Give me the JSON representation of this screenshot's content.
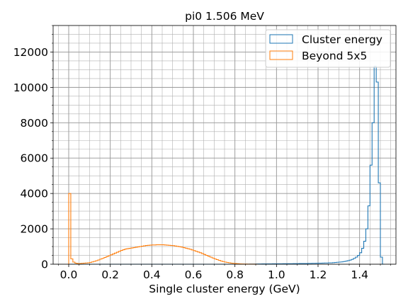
{
  "chart_data": {
    "type": "histogram",
    "title": "pi0 1.506 MeV",
    "xlabel": "Single cluster energy (GeV)",
    "ylabel": "",
    "xlim": [
      -0.075,
      1.575
    ],
    "ylim": [
      0,
      13500
    ],
    "x_ticks": [
      "0.0",
      "0.2",
      "0.4",
      "0.6",
      "0.8",
      "1.0",
      "1.2",
      "1.4"
    ],
    "y_ticks": [
      "0",
      "2000",
      "4000",
      "6000",
      "8000",
      "10000",
      "12000"
    ],
    "x_tick_values": [
      0.0,
      0.2,
      0.4,
      0.6,
      0.8,
      1.0,
      1.2,
      1.4
    ],
    "y_tick_values": [
      0,
      2000,
      4000,
      6000,
      8000,
      10000,
      12000
    ],
    "grid": true,
    "minor_grid": true,
    "legend_position": "top-right",
    "bin_start": 0.0,
    "bin_width": 0.01,
    "series": [
      {
        "name": "Cluster energy",
        "color": "#1f77b4",
        "values": [
          0,
          0,
          0,
          0,
          0,
          0,
          0,
          0,
          0,
          0,
          0,
          0,
          0,
          0,
          0,
          0,
          0,
          0,
          0,
          0,
          0,
          0,
          0,
          0,
          0,
          0,
          0,
          0,
          0,
          0,
          0,
          0,
          0,
          0,
          0,
          0,
          0,
          0,
          0,
          0,
          0,
          0,
          0,
          0,
          0,
          0,
          0,
          0,
          0,
          0,
          0,
          0,
          0,
          0,
          0,
          0,
          0,
          0,
          0,
          0,
          0,
          0,
          0,
          0,
          0,
          0,
          0,
          0,
          0,
          0,
          0,
          0,
          0,
          0,
          0,
          0,
          0,
          0,
          0,
          0,
          0,
          0,
          0,
          0,
          5,
          5,
          5,
          10,
          10,
          10,
          15,
          15,
          15,
          20,
          20,
          20,
          20,
          20,
          25,
          25,
          25,
          25,
          25,
          30,
          30,
          30,
          30,
          30,
          35,
          35,
          35,
          40,
          40,
          40,
          40,
          45,
          45,
          50,
          50,
          55,
          60,
          60,
          65,
          70,
          70,
          80,
          80,
          90,
          100,
          110,
          120,
          130,
          150,
          170,
          200,
          230,
          270,
          330,
          400,
          500,
          650,
          900,
          1300,
          2000,
          3300,
          5600,
          8000,
          11200,
          10300,
          4600,
          400,
          0
        ]
      },
      {
        "name": "Beyond 5x5",
        "color": "#ff7f0e",
        "values": [
          4000,
          300,
          120,
          60,
          40,
          40,
          50,
          60,
          70,
          80,
          100,
          130,
          160,
          200,
          240,
          290,
          330,
          380,
          430,
          480,
          530,
          580,
          630,
          680,
          730,
          780,
          820,
          860,
          880,
          900,
          920,
          940,
          960,
          980,
          1000,
          1020,
          1040,
          1060,
          1070,
          1080,
          1090,
          1090,
          1100,
          1100,
          1100,
          1100,
          1090,
          1080,
          1070,
          1060,
          1050,
          1030,
          1010,
          990,
          970,
          940,
          910,
          880,
          850,
          810,
          770,
          730,
          690,
          650,
          600,
          550,
          500,
          450,
          400,
          350,
          300,
          260,
          220,
          180,
          150,
          120,
          100,
          80,
          60,
          50,
          40,
          30,
          20,
          15,
          10,
          8,
          5,
          3,
          2,
          1,
          0
        ]
      }
    ]
  }
}
